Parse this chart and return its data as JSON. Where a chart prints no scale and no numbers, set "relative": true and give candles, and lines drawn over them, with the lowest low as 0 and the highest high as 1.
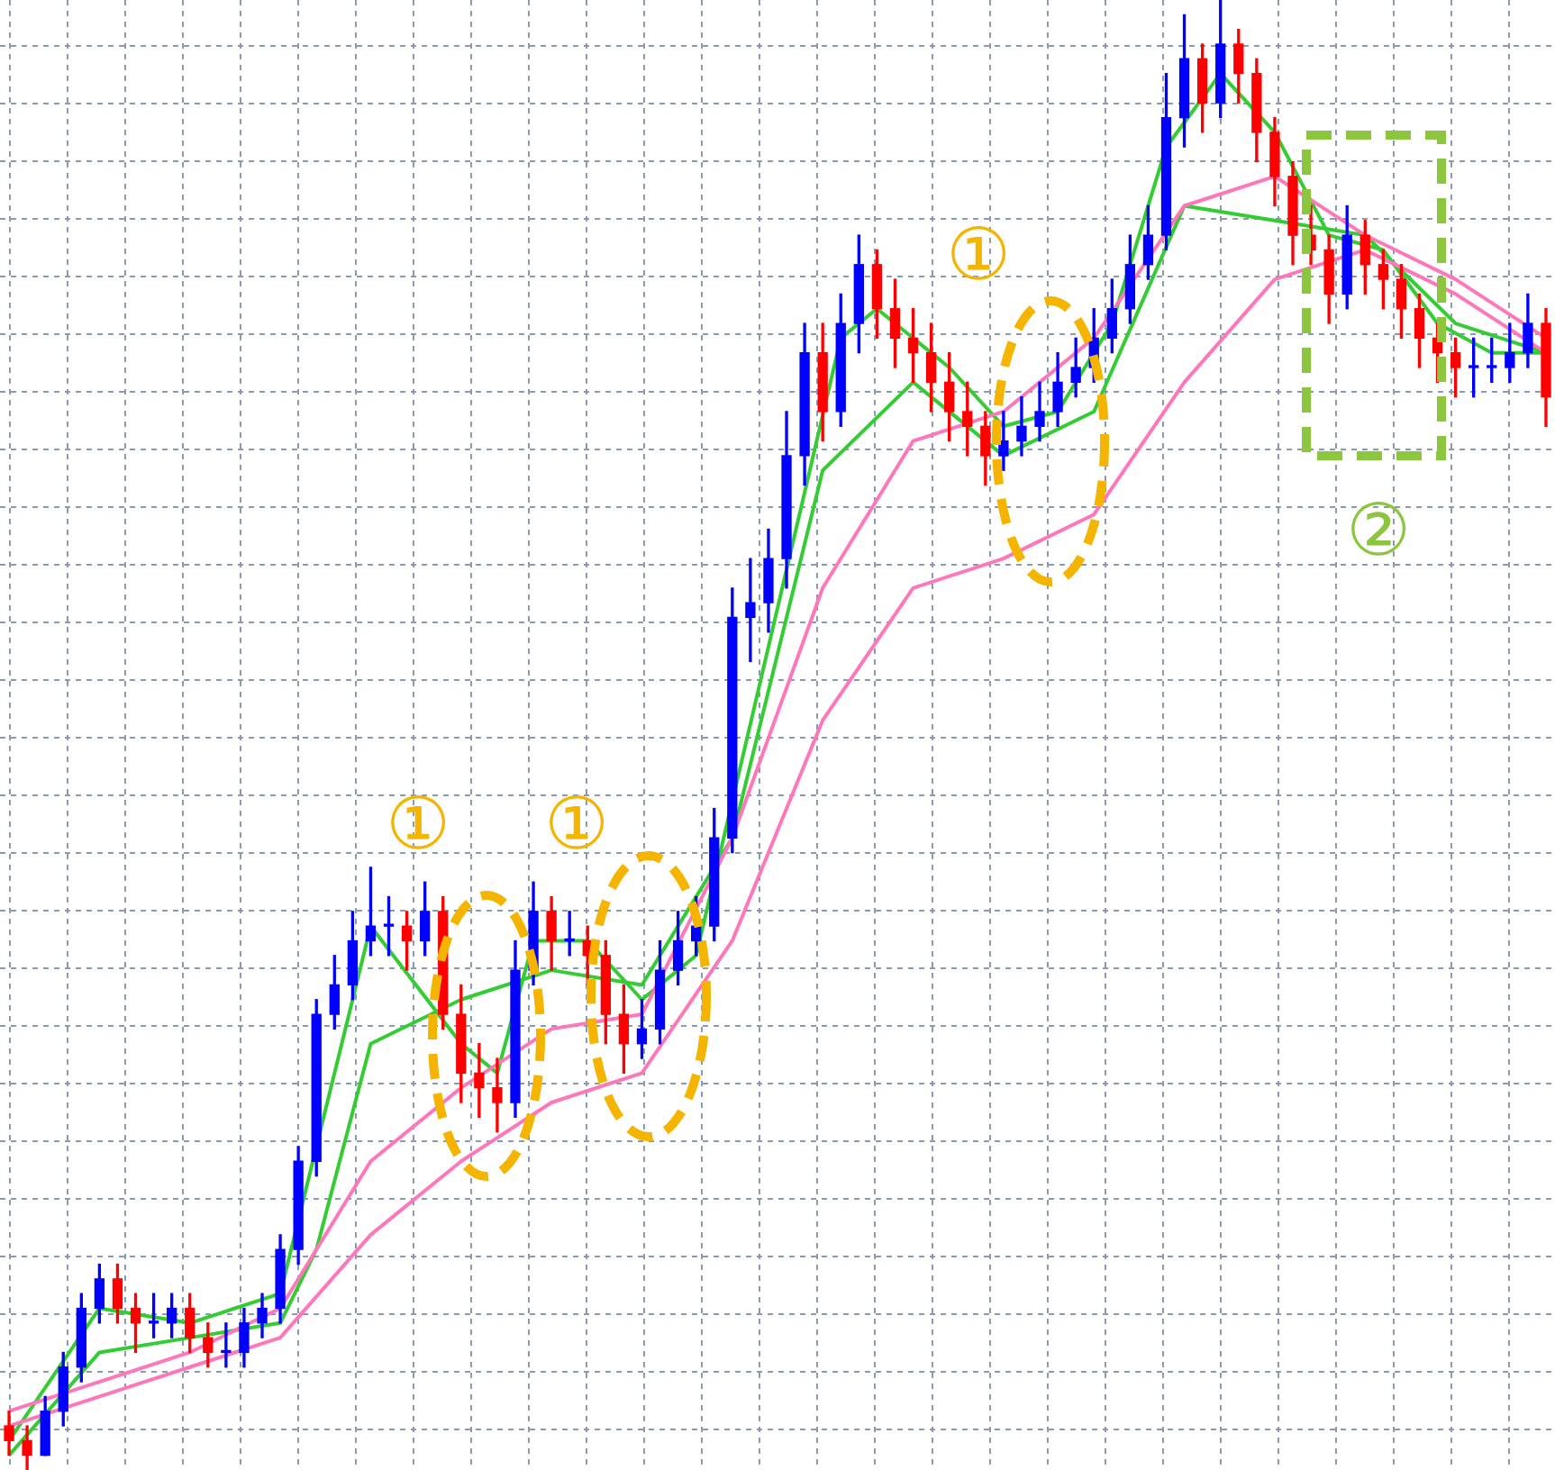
{
  "chart_data": {
    "type": "candlestick",
    "relative": true,
    "grid": true,
    "legend": false,
    "categories": [
      null,
      null,
      null,
      null,
      null,
      null,
      null,
      null,
      null,
      null,
      null,
      null,
      null,
      null,
      null,
      null,
      null,
      null,
      null,
      null,
      null,
      null,
      null,
      null,
      null,
      null,
      null,
      null,
      null,
      null,
      null,
      null,
      null,
      null,
      null,
      null,
      null,
      null,
      null,
      null,
      null,
      null,
      null,
      null,
      null,
      null,
      null,
      null,
      null,
      null,
      null,
      null,
      null,
      null,
      null,
      null,
      null,
      null,
      null,
      null,
      null,
      null,
      null,
      null,
      null,
      null,
      null,
      null,
      null,
      null,
      null,
      null,
      null,
      null,
      null,
      null,
      null,
      null,
      null,
      null,
      null,
      null,
      null,
      null,
      null,
      null
    ],
    "ohlc": [
      [
        0.03,
        0.04,
        0.01,
        0.02
      ],
      [
        0.02,
        0.03,
        0.0,
        0.01
      ],
      [
        0.01,
        0.05,
        0.01,
        0.04
      ],
      [
        0.04,
        0.08,
        0.03,
        0.07
      ],
      [
        0.07,
        0.12,
        0.06,
        0.11
      ],
      [
        0.11,
        0.14,
        0.1,
        0.13
      ],
      [
        0.13,
        0.14,
        0.1,
        0.11
      ],
      [
        0.11,
        0.12,
        0.08,
        0.1
      ],
      [
        0.1,
        0.12,
        0.09,
        0.1
      ],
      [
        0.1,
        0.12,
        0.09,
        0.11
      ],
      [
        0.11,
        0.12,
        0.08,
        0.09
      ],
      [
        0.09,
        0.1,
        0.07,
        0.08
      ],
      [
        0.08,
        0.1,
        0.07,
        0.08
      ],
      [
        0.08,
        0.11,
        0.07,
        0.1
      ],
      [
        0.1,
        0.12,
        0.09,
        0.11
      ],
      [
        0.11,
        0.16,
        0.1,
        0.15
      ],
      [
        0.15,
        0.22,
        0.14,
        0.21
      ],
      [
        0.21,
        0.32,
        0.2,
        0.31
      ],
      [
        0.31,
        0.35,
        0.3,
        0.33
      ],
      [
        0.33,
        0.38,
        0.32,
        0.36
      ],
      [
        0.36,
        0.41,
        0.35,
        0.37
      ],
      [
        0.37,
        0.39,
        0.35,
        0.37
      ],
      [
        0.37,
        0.38,
        0.34,
        0.36
      ],
      [
        0.36,
        0.4,
        0.35,
        0.38
      ],
      [
        0.38,
        0.39,
        0.3,
        0.31
      ],
      [
        0.31,
        0.33,
        0.25,
        0.27
      ],
      [
        0.27,
        0.29,
        0.24,
        0.26
      ],
      [
        0.26,
        0.28,
        0.23,
        0.25
      ],
      [
        0.25,
        0.36,
        0.24,
        0.34
      ],
      [
        0.34,
        0.4,
        0.33,
        0.38
      ],
      [
        0.38,
        0.39,
        0.34,
        0.36
      ],
      [
        0.36,
        0.38,
        0.35,
        0.36
      ],
      [
        0.36,
        0.37,
        0.33,
        0.35
      ],
      [
        0.35,
        0.36,
        0.29,
        0.31
      ],
      [
        0.31,
        0.33,
        0.27,
        0.29
      ],
      [
        0.29,
        0.32,
        0.28,
        0.3
      ],
      [
        0.3,
        0.36,
        0.29,
        0.34
      ],
      [
        0.34,
        0.38,
        0.33,
        0.36
      ],
      [
        0.36,
        0.39,
        0.35,
        0.37
      ],
      [
        0.37,
        0.45,
        0.36,
        0.43
      ],
      [
        0.43,
        0.6,
        0.42,
        0.58
      ],
      [
        0.58,
        0.62,
        0.55,
        0.59
      ],
      [
        0.59,
        0.64,
        0.57,
        0.62
      ],
      [
        0.62,
        0.72,
        0.6,
        0.69
      ],
      [
        0.69,
        0.78,
        0.67,
        0.76
      ],
      [
        0.76,
        0.78,
        0.7,
        0.72
      ],
      [
        0.72,
        0.8,
        0.71,
        0.78
      ],
      [
        0.78,
        0.84,
        0.76,
        0.82
      ],
      [
        0.82,
        0.83,
        0.77,
        0.79
      ],
      [
        0.79,
        0.81,
        0.75,
        0.77
      ],
      [
        0.77,
        0.79,
        0.74,
        0.76
      ],
      [
        0.76,
        0.78,
        0.72,
        0.74
      ],
      [
        0.74,
        0.76,
        0.7,
        0.72
      ],
      [
        0.72,
        0.74,
        0.69,
        0.71
      ],
      [
        0.71,
        0.72,
        0.67,
        0.69
      ],
      [
        0.69,
        0.72,
        0.68,
        0.7
      ],
      [
        0.7,
        0.73,
        0.69,
        0.71
      ],
      [
        0.71,
        0.74,
        0.7,
        0.72
      ],
      [
        0.72,
        0.76,
        0.71,
        0.74
      ],
      [
        0.74,
        0.77,
        0.73,
        0.75
      ],
      [
        0.75,
        0.79,
        0.74,
        0.77
      ],
      [
        0.77,
        0.81,
        0.76,
        0.79
      ],
      [
        0.79,
        0.84,
        0.78,
        0.82
      ],
      [
        0.82,
        0.86,
        0.81,
        0.84
      ],
      [
        0.84,
        0.95,
        0.83,
        0.92
      ],
      [
        0.92,
        0.99,
        0.9,
        0.96
      ],
      [
        0.96,
        0.97,
        0.91,
        0.93
      ],
      [
        0.93,
        1.0,
        0.92,
        0.97
      ],
      [
        0.97,
        0.98,
        0.93,
        0.95
      ],
      [
        0.95,
        0.96,
        0.89,
        0.91
      ],
      [
        0.91,
        0.92,
        0.86,
        0.88
      ],
      [
        0.88,
        0.89,
        0.82,
        0.84
      ],
      [
        0.84,
        0.86,
        0.82,
        0.83
      ],
      [
        0.83,
        0.84,
        0.78,
        0.8
      ],
      [
        0.8,
        0.86,
        0.79,
        0.84
      ],
      [
        0.84,
        0.85,
        0.8,
        0.82
      ],
      [
        0.82,
        0.83,
        0.79,
        0.81
      ],
      [
        0.81,
        0.82,
        0.77,
        0.79
      ],
      [
        0.79,
        0.8,
        0.75,
        0.77
      ],
      [
        0.77,
        0.78,
        0.74,
        0.76
      ],
      [
        0.76,
        0.77,
        0.73,
        0.75
      ],
      [
        0.75,
        0.77,
        0.73,
        0.75
      ],
      [
        0.75,
        0.77,
        0.74,
        0.75
      ],
      [
        0.75,
        0.78,
        0.74,
        0.76
      ],
      [
        0.76,
        0.8,
        0.75,
        0.78
      ],
      [
        0.78,
        0.79,
        0.71,
        0.73
      ]
    ],
    "colors": [
      "#ff0000",
      "#ff0000",
      "#0000ff",
      "#0000ff",
      "#0000ff",
      "#0000ff",
      "#ff0000",
      "#ff0000",
      "#0000ff",
      "#0000ff",
      "#ff0000",
      "#ff0000",
      "#0000ff",
      "#0000ff",
      "#0000ff",
      "#0000ff",
      "#0000ff",
      "#0000ff",
      "#0000ff",
      "#0000ff",
      "#0000ff",
      "#0000ff",
      "#ff0000",
      "#0000ff",
      "#ff0000",
      "#ff0000",
      "#ff0000",
      "#ff0000",
      "#0000ff",
      "#0000ff",
      "#ff0000",
      "#0000ff",
      "#ff0000",
      "#ff0000",
      "#ff0000",
      "#0000ff",
      "#0000ff",
      "#0000ff",
      "#0000ff",
      "#0000ff",
      "#0000ff",
      "#0000ff",
      "#0000ff",
      "#0000ff",
      "#0000ff",
      "#ff0000",
      "#0000ff",
      "#0000ff",
      "#ff0000",
      "#ff0000",
      "#ff0000",
      "#ff0000",
      "#ff0000",
      "#ff0000",
      "#ff0000",
      "#0000ff",
      "#0000ff",
      "#0000ff",
      "#0000ff",
      "#0000ff",
      "#0000ff",
      "#0000ff",
      "#0000ff",
      "#0000ff",
      "#0000ff",
      "#0000ff",
      "#ff0000",
      "#0000ff",
      "#ff0000",
      "#ff0000",
      "#ff0000",
      "#ff0000",
      "#ff0000",
      "#ff0000",
      "#0000ff",
      "#ff0000",
      "#ff0000",
      "#ff0000",
      "#ff0000",
      "#ff0000",
      "#ff0000",
      "#0000ff",
      "#0000ff",
      "#0000ff",
      "#0000ff",
      "#ff0000"
    ],
    "series": [
      {
        "type": "line",
        "color": "#ff77bb",
        "values": [
          0.04,
          null,
          null,
          null,
          null,
          null,
          null,
          null,
          null,
          null,
          0.08,
          null,
          null,
          null,
          null,
          0.11,
          null,
          null,
          null,
          null,
          0.21,
          null,
          null,
          null,
          null,
          0.26,
          null,
          null,
          null,
          null,
          0.3,
          null,
          null,
          null,
          null,
          0.31,
          null,
          null,
          null,
          null,
          0.43,
          null,
          null,
          null,
          null,
          0.6,
          null,
          null,
          null,
          null,
          0.7,
          null,
          null,
          null,
          null,
          0.72,
          null,
          null,
          null,
          null,
          0.77,
          null,
          null,
          null,
          null,
          0.86,
          null,
          null,
          null,
          null,
          0.88,
          null,
          null,
          null,
          null,
          0.84,
          null,
          null,
          null,
          null,
          0.81,
          null,
          null,
          null,
          null,
          0.77
        ]
      },
      {
        "type": "line",
        "color": "#ff77bb",
        "values": [
          0.03,
          null,
          null,
          null,
          null,
          null,
          null,
          null,
          null,
          null,
          0.07,
          null,
          null,
          null,
          null,
          0.09,
          null,
          null,
          null,
          null,
          0.16,
          null,
          null,
          null,
          null,
          0.21,
          null,
          null,
          null,
          null,
          0.25,
          null,
          null,
          null,
          null,
          0.27,
          null,
          null,
          null,
          null,
          0.36,
          null,
          null,
          null,
          null,
          0.51,
          null,
          null,
          null,
          null,
          0.6,
          null,
          null,
          null,
          null,
          0.62,
          null,
          null,
          null,
          null,
          0.65,
          null,
          null,
          null,
          null,
          0.74,
          null,
          null,
          null,
          null,
          0.81,
          null,
          null,
          null,
          null,
          0.83,
          null,
          null,
          null,
          null,
          0.8,
          null,
          null,
          null,
          null,
          0.76
        ]
      },
      {
        "type": "line",
        "color": "#33cc33",
        "values": [
          0.02,
          null,
          null,
          null,
          null,
          0.11,
          null,
          null,
          null,
          null,
          0.1,
          null,
          null,
          null,
          null,
          0.12,
          null,
          null,
          null,
          null,
          0.37,
          null,
          null,
          null,
          null,
          0.29,
          null,
          0.27,
          null,
          0.36,
          null,
          null,
          0.36,
          null,
          null,
          0.32,
          null,
          null,
          0.35,
          null,
          null,
          null,
          null,
          null,
          null,
          null,
          0.77,
          null,
          0.79,
          null,
          null,
          null,
          0.75,
          null,
          null,
          0.71,
          null,
          null,
          0.72,
          null,
          null,
          0.78,
          null,
          null,
          0.9,
          null,
          null,
          0.95,
          null,
          null,
          0.91,
          null,
          null,
          0.84,
          null,
          null,
          0.83,
          null,
          null,
          0.78,
          null,
          null,
          0.76,
          null,
          null,
          0.76
        ]
      },
      {
        "type": "line",
        "color": "#33cc33",
        "values": [
          0.01,
          null,
          null,
          null,
          null,
          0.08,
          null,
          null,
          null,
          null,
          0.09,
          null,
          null,
          null,
          null,
          0.1,
          null,
          0.15,
          null,
          null,
          0.29,
          null,
          null,
          null,
          null,
          0.32,
          null,
          null,
          null,
          null,
          0.34,
          null,
          null,
          null,
          null,
          0.33,
          null,
          null,
          null,
          null,
          0.43,
          null,
          null,
          null,
          null,
          0.68,
          null,
          null,
          null,
          null,
          0.74,
          null,
          null,
          null,
          null,
          0.69,
          null,
          null,
          null,
          null,
          0.72,
          null,
          null,
          null,
          null,
          0.86,
          null,
          null,
          null,
          null,
          null,
          null,
          null,
          null,
          null,
          0.84,
          null,
          null,
          null,
          null,
          0.78,
          null,
          null,
          null,
          null,
          0.76
        ]
      }
    ],
    "annotations": [
      "①",
      "①",
      "①",
      "②"
    ]
  }
}
